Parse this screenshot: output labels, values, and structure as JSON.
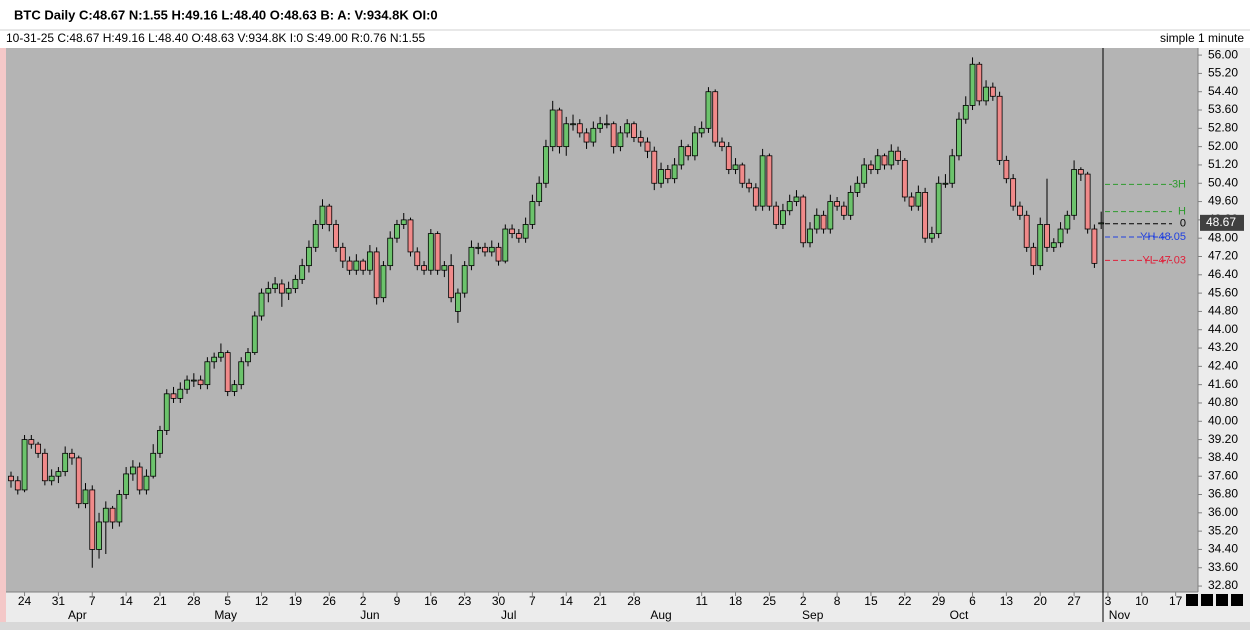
{
  "header": {
    "line1": "BTC Daily C:48.67 N:1.55 H:49.16 L:48.40 O:48.63 B: A: V:934.8K OI:0",
    "line2": "10-31-25  C:48.67  H:49.16  L:48.40  O:48.63  V:934.8K  I:0  S:49.00  R:0.76  N:1.55",
    "right": "simple 1 minute"
  },
  "chart_data": {
    "type": "candlestick",
    "up_color": "#6cc36c",
    "down_color": "#f08a8a",
    "ylim": [
      32.54,
      56.31
    ],
    "xlim": [
      -0.74,
      175.3
    ],
    "yticks": [
      {
        "value": 32.8,
        "label": "32.80"
      },
      {
        "value": 33.6,
        "label": "33.60"
      },
      {
        "value": 34.4,
        "label": "34.40"
      },
      {
        "value": 35.2,
        "label": "35.20"
      },
      {
        "value": 36,
        "label": "36.00"
      },
      {
        "value": 36.8,
        "label": "36.80"
      },
      {
        "value": 37.6,
        "label": "37.60"
      },
      {
        "value": 38.4,
        "label": "38.40"
      },
      {
        "value": 39.2,
        "label": "39.20"
      },
      {
        "value": 40,
        "label": "40.00"
      },
      {
        "value": 40.8,
        "label": "40.80"
      },
      {
        "value": 41.6,
        "label": "41.60"
      },
      {
        "value": 42.4,
        "label": "42.40"
      },
      {
        "value": 43.2,
        "label": "43.20"
      },
      {
        "value": 44,
        "label": "44.00"
      },
      {
        "value": 44.8,
        "label": "44.80"
      },
      {
        "value": 45.6,
        "label": "45.60"
      },
      {
        "value": 46.4,
        "label": "46.40"
      },
      {
        "value": 47.2,
        "label": "47.20"
      },
      {
        "value": 48,
        "label": "48.00"
      },
      {
        "value": 48.8,
        "label": "48.80"
      },
      {
        "value": 49.6,
        "label": "49.60"
      },
      {
        "value": 50.4,
        "label": "50.40"
      },
      {
        "value": 51.2,
        "label": "51.20"
      },
      {
        "value": 52,
        "label": "52.00"
      },
      {
        "value": 52.8,
        "label": "52.80"
      },
      {
        "value": 53.6,
        "label": "53.60"
      },
      {
        "value": 54.4,
        "label": "54.40"
      },
      {
        "value": 55.2,
        "label": "55.20"
      },
      {
        "value": 56,
        "label": "56.00"
      }
    ],
    "xticks": [
      {
        "value": 2,
        "label": "24"
      },
      {
        "value": 7,
        "label": "31"
      },
      {
        "value": 12,
        "label": "7"
      },
      {
        "value": 17,
        "label": "14"
      },
      {
        "value": 22,
        "label": "21"
      },
      {
        "value": 27,
        "label": "28"
      },
      {
        "value": 32,
        "label": "5"
      },
      {
        "value": 37,
        "label": "12"
      },
      {
        "value": 42,
        "label": "19"
      },
      {
        "value": 47,
        "label": "26"
      },
      {
        "value": 52,
        "label": "2"
      },
      {
        "value": 57,
        "label": "9"
      },
      {
        "value": 62,
        "label": "16"
      },
      {
        "value": 67,
        "label": "23"
      },
      {
        "value": 72,
        "label": "30"
      },
      {
        "value": 77,
        "label": "7"
      },
      {
        "value": 82,
        "label": "14"
      },
      {
        "value": 87,
        "label": "21"
      },
      {
        "value": 92,
        "label": "28"
      },
      {
        "value": 102,
        "label": "11"
      },
      {
        "value": 107,
        "label": "18"
      },
      {
        "value": 112,
        "label": "25"
      },
      {
        "value": 117,
        "label": "2"
      },
      {
        "value": 122,
        "label": "8"
      },
      {
        "value": 127,
        "label": "15"
      },
      {
        "value": 132,
        "label": "22"
      },
      {
        "value": 137,
        "label": "29"
      },
      {
        "value": 142,
        "label": "6"
      },
      {
        "value": 147,
        "label": "13"
      },
      {
        "value": 152,
        "label": "20"
      },
      {
        "value": 157,
        "label": "27"
      },
      {
        "value": 162,
        "label": "3"
      },
      {
        "value": 167,
        "label": "10"
      },
      {
        "value": 172,
        "label": "17"
      }
    ],
    "month_ticks": [
      {
        "value": 9.8,
        "label": "Apr"
      },
      {
        "value": 31.7,
        "label": "May"
      },
      {
        "value": 53,
        "label": "Jun"
      },
      {
        "value": 73.5,
        "label": "Jul"
      },
      {
        "value": 96,
        "label": "Aug"
      },
      {
        "value": 118.4,
        "label": "Sep"
      },
      {
        "value": 140,
        "label": "Oct"
      },
      {
        "value": 163.7,
        "label": "Nov"
      }
    ],
    "last_price": 48.67,
    "levels": [
      {
        "label": "3H",
        "value": 50.35,
        "color": "#2e9a2e"
      },
      {
        "label": "H",
        "value": 49.16,
        "color": "#2e9a2e"
      },
      {
        "label": "0",
        "value": 48.63,
        "color": "#000000"
      },
      {
        "label": "YH 48.05",
        "value": 48.05,
        "color": "#1f3fe0"
      },
      {
        "label": "YL 47.03",
        "value": 47.03,
        "color": "#e0203a"
      }
    ],
    "ohlc": [
      [
        37.6,
        37.8,
        37.1,
        37.4
      ],
      [
        37.4,
        37.6,
        36.8,
        37.0
      ],
      [
        37.0,
        39.4,
        36.9,
        39.2
      ],
      [
        39.2,
        39.4,
        38.8,
        39.0
      ],
      [
        39.0,
        39.1,
        38.4,
        38.6
      ],
      [
        38.6,
        38.8,
        37.2,
        37.4
      ],
      [
        37.4,
        37.9,
        37.2,
        37.6
      ],
      [
        37.6,
        38.0,
        37.3,
        37.8
      ],
      [
        37.8,
        38.9,
        37.6,
        38.6
      ],
      [
        38.6,
        38.8,
        38.1,
        38.4
      ],
      [
        38.4,
        38.5,
        36.2,
        36.4
      ],
      [
        36.4,
        37.3,
        36.2,
        37.0
      ],
      [
        37.0,
        37.2,
        33.6,
        34.4
      ],
      [
        34.4,
        36.0,
        34.0,
        35.6
      ],
      [
        35.6,
        36.5,
        34.2,
        36.2
      ],
      [
        36.2,
        36.3,
        35.3,
        35.6
      ],
      [
        35.6,
        37.0,
        35.4,
        36.8
      ],
      [
        36.8,
        38.0,
        36.6,
        37.7
      ],
      [
        37.7,
        38.3,
        37.4,
        38.0
      ],
      [
        38.0,
        38.2,
        36.8,
        37.0
      ],
      [
        37.0,
        37.9,
        36.8,
        37.6
      ],
      [
        37.6,
        39.0,
        37.5,
        38.6
      ],
      [
        38.6,
        39.8,
        38.4,
        39.6
      ],
      [
        39.6,
        41.4,
        39.4,
        41.2
      ],
      [
        41.2,
        41.5,
        40.8,
        41.0
      ],
      [
        41.0,
        41.7,
        40.8,
        41.4
      ],
      [
        41.4,
        42.0,
        41.2,
        41.8
      ],
      [
        41.8,
        42.1,
        41.5,
        41.8
      ],
      [
        41.8,
        42.0,
        41.4,
        41.6
      ],
      [
        41.6,
        42.8,
        41.4,
        42.6
      ],
      [
        42.6,
        43.0,
        42.3,
        42.8
      ],
      [
        42.8,
        43.4,
        42.6,
        43.0
      ],
      [
        43.0,
        43.1,
        41.1,
        41.3
      ],
      [
        41.3,
        41.8,
        41.1,
        41.6
      ],
      [
        41.6,
        42.8,
        41.4,
        42.6
      ],
      [
        42.6,
        43.2,
        42.4,
        43.0
      ],
      [
        43.0,
        44.8,
        42.9,
        44.6
      ],
      [
        44.6,
        45.8,
        44.4,
        45.6
      ],
      [
        45.6,
        46.1,
        45.2,
        45.8
      ],
      [
        45.8,
        46.3,
        45.6,
        46.0
      ],
      [
        46.0,
        46.2,
        45.0,
        45.6
      ],
      [
        45.6,
        46.1,
        45.3,
        45.8
      ],
      [
        45.8,
        46.4,
        45.6,
        46.2
      ],
      [
        46.2,
        47.1,
        46.0,
        46.8
      ],
      [
        46.8,
        47.9,
        46.5,
        47.6
      ],
      [
        47.6,
        48.8,
        47.4,
        48.6
      ],
      [
        48.6,
        49.7,
        48.4,
        49.4
      ],
      [
        49.4,
        49.5,
        48.3,
        48.6
      ],
      [
        48.6,
        48.8,
        47.4,
        47.6
      ],
      [
        47.6,
        47.8,
        46.7,
        47.0
      ],
      [
        47.0,
        47.2,
        46.4,
        46.6
      ],
      [
        46.6,
        47.3,
        46.4,
        47.0
      ],
      [
        47.0,
        47.1,
        46.4,
        46.6
      ],
      [
        46.6,
        47.7,
        46.4,
        47.4
      ],
      [
        47.4,
        47.6,
        45.1,
        45.4
      ],
      [
        45.4,
        47.0,
        45.2,
        46.8
      ],
      [
        46.8,
        48.3,
        46.6,
        48.0
      ],
      [
        48.0,
        48.8,
        47.8,
        48.6
      ],
      [
        48.6,
        49.1,
        48.4,
        48.8
      ],
      [
        48.8,
        48.9,
        47.2,
        47.4
      ],
      [
        47.4,
        47.6,
        46.6,
        46.8
      ],
      [
        46.8,
        47.0,
        46.4,
        46.6
      ],
      [
        46.6,
        48.4,
        46.4,
        48.2
      ],
      [
        48.2,
        48.3,
        46.4,
        46.6
      ],
      [
        46.6,
        47.0,
        46.3,
        46.8
      ],
      [
        46.8,
        47.3,
        45.2,
        45.4
      ],
      [
        44.8,
        45.8,
        44.3,
        45.6
      ],
      [
        45.6,
        47.0,
        45.4,
        46.8
      ],
      [
        46.8,
        47.9,
        46.6,
        47.6
      ],
      [
        47.6,
        47.8,
        47.3,
        47.6
      ],
      [
        47.6,
        47.8,
        47.2,
        47.4
      ],
      [
        47.4,
        47.9,
        47.2,
        47.6
      ],
      [
        47.6,
        47.8,
        46.8,
        47.0
      ],
      [
        47.0,
        48.6,
        46.9,
        48.4
      ],
      [
        48.4,
        48.6,
        48.0,
        48.2
      ],
      [
        48.2,
        48.4,
        47.8,
        48.0
      ],
      [
        48.0,
        48.9,
        47.8,
        48.6
      ],
      [
        48.6,
        49.9,
        48.4,
        49.6
      ],
      [
        49.6,
        50.7,
        49.4,
        50.4
      ],
      [
        50.4,
        52.3,
        50.2,
        52.0
      ],
      [
        52.0,
        54.0,
        51.8,
        53.6
      ],
      [
        53.6,
        53.7,
        51.7,
        52.0
      ],
      [
        52.0,
        53.3,
        51.6,
        53.0
      ],
      [
        53.0,
        53.4,
        52.7,
        53.0
      ],
      [
        53.0,
        53.2,
        52.4,
        52.6
      ],
      [
        52.6,
        52.8,
        51.9,
        52.2
      ],
      [
        52.2,
        53.1,
        52.0,
        52.8
      ],
      [
        52.8,
        53.3,
        52.6,
        53.0
      ],
      [
        53.0,
        53.4,
        52.8,
        53.0
      ],
      [
        53.0,
        53.1,
        51.7,
        52.0
      ],
      [
        52.0,
        52.9,
        51.8,
        52.6
      ],
      [
        52.6,
        53.2,
        52.4,
        53.0
      ],
      [
        53.0,
        53.1,
        52.2,
        52.4
      ],
      [
        52.4,
        52.7,
        52.0,
        52.2
      ],
      [
        52.2,
        52.4,
        51.5,
        51.8
      ],
      [
        51.8,
        52.0,
        50.1,
        50.4
      ],
      [
        50.4,
        51.3,
        50.2,
        51.0
      ],
      [
        51.0,
        51.2,
        50.4,
        50.6
      ],
      [
        50.6,
        51.5,
        50.4,
        51.2
      ],
      [
        51.2,
        52.3,
        51.0,
        52.0
      ],
      [
        52.0,
        52.1,
        51.4,
        51.6
      ],
      [
        51.6,
        52.9,
        51.4,
        52.6
      ],
      [
        52.6,
        53.1,
        52.4,
        52.8
      ],
      [
        52.8,
        54.6,
        52.6,
        54.4
      ],
      [
        54.4,
        54.5,
        52.0,
        52.2
      ],
      [
        52.2,
        52.4,
        51.8,
        52.0
      ],
      [
        52.0,
        52.2,
        50.8,
        51.0
      ],
      [
        51.0,
        51.5,
        50.8,
        51.2
      ],
      [
        51.2,
        51.3,
        50.2,
        50.4
      ],
      [
        50.4,
        50.6,
        50.0,
        50.2
      ],
      [
        50.2,
        50.4,
        49.2,
        49.4
      ],
      [
        49.4,
        51.9,
        49.2,
        51.6
      ],
      [
        51.6,
        51.7,
        49.2,
        49.4
      ],
      [
        49.4,
        49.6,
        48.4,
        48.6
      ],
      [
        48.6,
        49.5,
        48.4,
        49.2
      ],
      [
        49.2,
        49.9,
        49.0,
        49.6
      ],
      [
        49.6,
        50.1,
        49.4,
        49.8
      ],
      [
        49.8,
        49.9,
        47.6,
        47.8
      ],
      [
        47.8,
        48.7,
        47.6,
        48.4
      ],
      [
        48.4,
        49.3,
        48.2,
        49.0
      ],
      [
        49.0,
        49.2,
        48.2,
        48.4
      ],
      [
        48.4,
        49.9,
        48.2,
        49.6
      ],
      [
        49.6,
        49.8,
        49.2,
        49.4
      ],
      [
        49.4,
        49.6,
        48.8,
        49.0
      ],
      [
        49.0,
        50.3,
        48.8,
        50.0
      ],
      [
        50.0,
        50.7,
        49.8,
        50.4
      ],
      [
        50.4,
        51.5,
        50.2,
        51.2
      ],
      [
        51.2,
        51.4,
        50.8,
        51.0
      ],
      [
        51.0,
        51.9,
        50.8,
        51.6
      ],
      [
        51.6,
        51.7,
        51.0,
        51.2
      ],
      [
        51.2,
        52.1,
        51.0,
        51.8
      ],
      [
        51.8,
        52.0,
        51.2,
        51.4
      ],
      [
        51.4,
        51.5,
        49.6,
        49.8
      ],
      [
        49.8,
        50.0,
        49.2,
        49.4
      ],
      [
        49.4,
        50.3,
        49.2,
        50.0
      ],
      [
        50.0,
        50.2,
        47.8,
        48.0
      ],
      [
        48.0,
        48.5,
        47.8,
        48.2
      ],
      [
        48.2,
        50.7,
        48.0,
        50.4
      ],
      [
        50.4,
        50.8,
        50.2,
        50.4
      ],
      [
        50.4,
        51.9,
        50.2,
        51.6
      ],
      [
        51.6,
        53.5,
        51.4,
        53.2
      ],
      [
        53.2,
        54.2,
        53.0,
        53.8
      ],
      [
        53.8,
        55.9,
        53.6,
        55.6
      ],
      [
        55.6,
        55.7,
        53.8,
        54.0
      ],
      [
        54.0,
        54.9,
        53.8,
        54.6
      ],
      [
        54.6,
        54.8,
        54.0,
        54.2
      ],
      [
        54.2,
        54.4,
        51.2,
        51.4
      ],
      [
        51.4,
        51.6,
        50.4,
        50.6
      ],
      [
        50.6,
        50.8,
        49.2,
        49.4
      ],
      [
        49.4,
        49.6,
        48.8,
        49.0
      ],
      [
        49.0,
        49.2,
        47.4,
        47.6
      ],
      [
        47.6,
        47.8,
        46.4,
        46.8
      ],
      [
        46.8,
        48.9,
        46.6,
        48.6
      ],
      [
        48.6,
        50.6,
        47.4,
        47.6
      ],
      [
        47.6,
        48.0,
        47.4,
        47.8
      ],
      [
        47.8,
        48.7,
        47.6,
        48.4
      ],
      [
        48.4,
        49.2,
        48.2,
        49.0
      ],
      [
        49.0,
        51.4,
        48.8,
        51.0
      ],
      [
        51.0,
        51.1,
        50.5,
        50.8
      ],
      [
        50.8,
        50.9,
        48.2,
        48.4
      ],
      [
        48.4,
        48.6,
        46.7,
        46.9
      ],
      [
        48.63,
        49.16,
        48.4,
        48.67
      ]
    ]
  }
}
